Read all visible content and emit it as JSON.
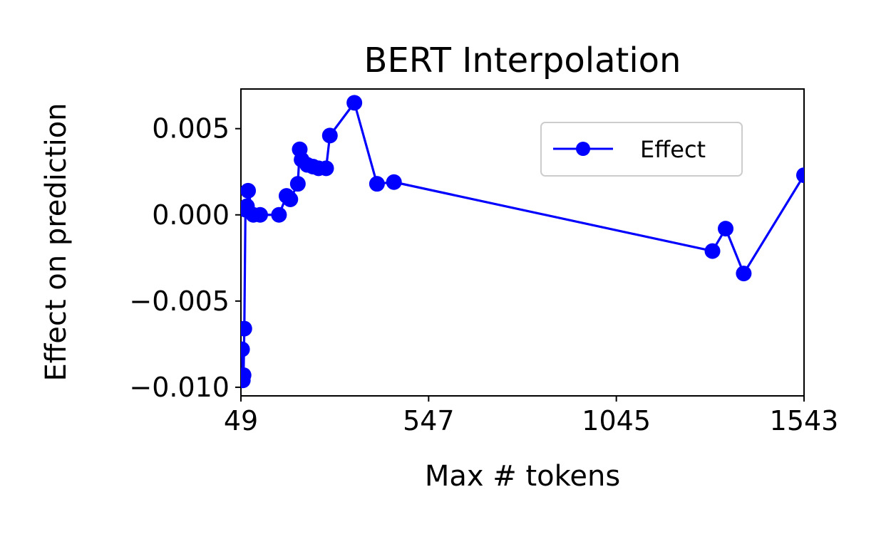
{
  "chart_data": {
    "type": "line",
    "title": "BERT Interpolation",
    "xlabel": "Max # tokens",
    "ylabel": "Effect on prediction",
    "xlim": [
      49,
      1543
    ],
    "ylim": [
      -0.0105,
      0.0073
    ],
    "xticks": [
      49,
      547,
      1045,
      1543
    ],
    "xtick_labels": [
      "49",
      "547",
      "1045",
      "1543"
    ],
    "yticks": [
      -0.01,
      -0.005,
      0.0,
      0.005
    ],
    "ytick_labels": [
      "−0.010",
      "−0.005",
      "0.000",
      "0.005"
    ],
    "grid": false,
    "legend_position": "upper right",
    "series": [
      {
        "name": "Effect",
        "color": "#0000ff",
        "marker": "circle",
        "x": [
          52,
          54,
          56,
          58,
          61,
          63,
          65,
          68,
          82,
          100,
          150,
          170,
          180,
          200,
          205,
          210,
          225,
          240,
          255,
          275,
          285,
          350,
          410,
          455,
          1300,
          1335,
          1383,
          1543
        ],
        "y": [
          -0.0078,
          -0.0096,
          -0.0093,
          -0.0066,
          0.0003,
          0.0004,
          0.0005,
          0.0014,
          0.0,
          0.0,
          0.0,
          0.0011,
          0.0009,
          0.0018,
          0.0038,
          0.0032,
          0.0029,
          0.0028,
          0.0027,
          0.0027,
          0.0046,
          0.0065,
          0.0018,
          0.0019,
          -0.0021,
          -0.0008,
          -0.0034,
          0.0023
        ]
      }
    ]
  }
}
